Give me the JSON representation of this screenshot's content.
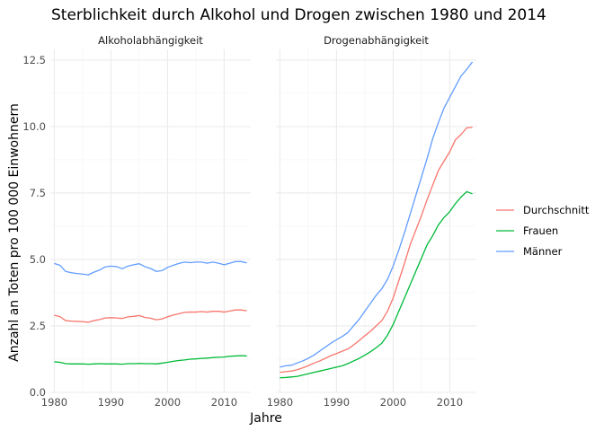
{
  "chart_data": {
    "type": "line",
    "title": "Sterblichkeit durch Alkohol und Drogen zwischen 1980 und 2014",
    "xlabel": "Jahre",
    "ylabel": "Anzahl an Toten pro 100 000 Einwohnern",
    "xlim": [
      1979.3,
      2014.7
    ],
    "ylim": [
      0,
      12.9
    ],
    "x_ticks": [
      1980,
      1990,
      2000,
      2010
    ],
    "y_ticks": [
      "0.0",
      "2.5",
      "5.0",
      "7.5",
      "10.0",
      "12.5"
    ],
    "y_tick_values": [
      0,
      2.5,
      5,
      7.5,
      10,
      12.5
    ],
    "legend_position": "right",
    "legend": [
      {
        "name": "Durchschnitt",
        "color": "#F8766D"
      },
      {
        "name": "Frauen",
        "color": "#00BA38"
      },
      {
        "name": "Männer",
        "color": "#619CFF"
      }
    ],
    "x": [
      1980,
      1981,
      1982,
      1983,
      1984,
      1985,
      1986,
      1987,
      1988,
      1989,
      1990,
      1991,
      1992,
      1993,
      1994,
      1995,
      1996,
      1997,
      1998,
      1999,
      2000,
      2001,
      2002,
      2003,
      2004,
      2005,
      2006,
      2007,
      2008,
      2009,
      2010,
      2011,
      2012,
      2013,
      2014
    ],
    "panels": [
      {
        "name": "Alkoholabhängigkeit",
        "series": [
          {
            "name": "Durchschnitt",
            "values": [
              2.9,
              2.85,
              2.7,
              2.68,
              2.67,
              2.66,
              2.64,
              2.7,
              2.74,
              2.8,
              2.81,
              2.8,
              2.78,
              2.84,
              2.86,
              2.89,
              2.82,
              2.79,
              2.73,
              2.76,
              2.84,
              2.91,
              2.96,
              3.01,
              3.02,
              3.02,
              3.04,
              3.02,
              3.05,
              3.05,
              3.02,
              3.06,
              3.1,
              3.1,
              3.07
            ]
          },
          {
            "name": "Frauen",
            "values": [
              1.15,
              1.13,
              1.08,
              1.07,
              1.07,
              1.07,
              1.06,
              1.07,
              1.08,
              1.07,
              1.07,
              1.07,
              1.06,
              1.08,
              1.08,
              1.09,
              1.08,
              1.08,
              1.07,
              1.1,
              1.13,
              1.17,
              1.2,
              1.22,
              1.25,
              1.26,
              1.28,
              1.29,
              1.31,
              1.32,
              1.33,
              1.36,
              1.37,
              1.38,
              1.37
            ]
          },
          {
            "name": "Männer",
            "values": [
              4.85,
              4.78,
              4.55,
              4.5,
              4.47,
              4.45,
              4.42,
              4.52,
              4.6,
              4.72,
              4.75,
              4.73,
              4.65,
              4.75,
              4.8,
              4.84,
              4.73,
              4.66,
              4.55,
              4.58,
              4.7,
              4.78,
              4.85,
              4.9,
              4.88,
              4.9,
              4.9,
              4.86,
              4.9,
              4.86,
              4.8,
              4.86,
              4.92,
              4.92,
              4.87
            ]
          }
        ]
      },
      {
        "name": "Drogenabhängigkeit",
        "series": [
          {
            "name": "Durchschnitt",
            "values": [
              0.75,
              0.78,
              0.8,
              0.85,
              0.92,
              1.0,
              1.1,
              1.18,
              1.28,
              1.38,
              1.46,
              1.55,
              1.63,
              1.78,
              1.95,
              2.13,
              2.3,
              2.5,
              2.7,
              3.05,
              3.55,
              4.2,
              4.85,
              5.55,
              6.1,
              6.65,
              7.25,
              7.8,
              8.35,
              8.7,
              9.05,
              9.5,
              9.7,
              9.95,
              9.97
            ]
          },
          {
            "name": "Frauen",
            "values": [
              0.55,
              0.56,
              0.58,
              0.6,
              0.65,
              0.7,
              0.75,
              0.8,
              0.85,
              0.9,
              0.95,
              1.0,
              1.08,
              1.18,
              1.28,
              1.4,
              1.53,
              1.68,
              1.85,
              2.15,
              2.55,
              3.05,
              3.55,
              4.05,
              4.55,
              5.05,
              5.55,
              5.9,
              6.3,
              6.58,
              6.8,
              7.1,
              7.35,
              7.55,
              7.47
            ]
          },
          {
            "name": "Männer",
            "values": [
              0.95,
              1.0,
              1.02,
              1.1,
              1.18,
              1.28,
              1.4,
              1.55,
              1.7,
              1.85,
              1.98,
              2.1,
              2.25,
              2.5,
              2.75,
              3.05,
              3.35,
              3.65,
              3.9,
              4.25,
              4.75,
              5.35,
              6.0,
              6.7,
              7.4,
              8.1,
              8.8,
              9.55,
              10.15,
              10.7,
              11.1,
              11.5,
              11.9,
              12.15,
              12.43
            ]
          }
        ]
      }
    ]
  }
}
